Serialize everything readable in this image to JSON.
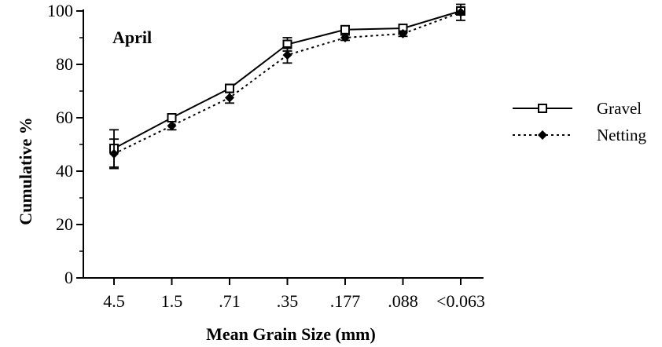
{
  "chart_data": {
    "type": "line",
    "title": "",
    "annotation": "April",
    "xlabel": "Mean Grain Size (mm)",
    "ylabel": "Cumulative %",
    "categories": [
      "4.5",
      "1.5",
      ".71",
      ".35",
      ".177",
      ".088",
      "<0.063"
    ],
    "yticks": [
      "0",
      "20",
      "40",
      "60",
      "80",
      "100"
    ],
    "ylim": [
      0,
      100
    ],
    "grid": false,
    "legend_position": "right",
    "series": [
      {
        "name": "Gravel",
        "marker": "open-square",
        "line_style": "solid",
        "values": [
          48.5,
          60,
          71,
          87.5,
          93,
          93.5,
          100
        ],
        "errors": [
          7,
          1.5,
          1.5,
          2.5,
          1,
          1,
          1.5
        ]
      },
      {
        "name": "Netting",
        "marker": "filled-diamond",
        "line_style": "dotted",
        "values": [
          46.5,
          57,
          67.5,
          83.5,
          90,
          91.5,
          99.5
        ],
        "errors": [
          5.5,
          1.5,
          2,
          3,
          1,
          1,
          3
        ]
      }
    ],
    "colors": {
      "line": "#000000",
      "background": "#ffffff"
    }
  }
}
